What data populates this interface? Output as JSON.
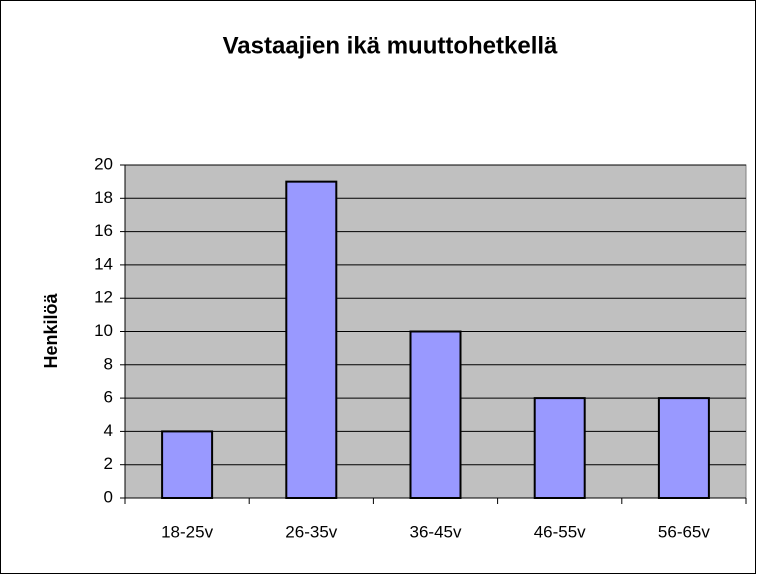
{
  "chart_data": {
    "type": "bar",
    "title": "Vastaajien ikä muuttohetkellä",
    "y_label": "Henkilöä",
    "categories": [
      "18-25v",
      "26-35v",
      "36-45v",
      "46-55v",
      "56-65v"
    ],
    "values": [
      4,
      19,
      10,
      6,
      6
    ],
    "color": "#9999ff",
    "ylim": [
      0,
      20
    ],
    "yticks": [
      0,
      2,
      4,
      6,
      8,
      10,
      12,
      14,
      16,
      18,
      20
    ],
    "grid": true
  }
}
